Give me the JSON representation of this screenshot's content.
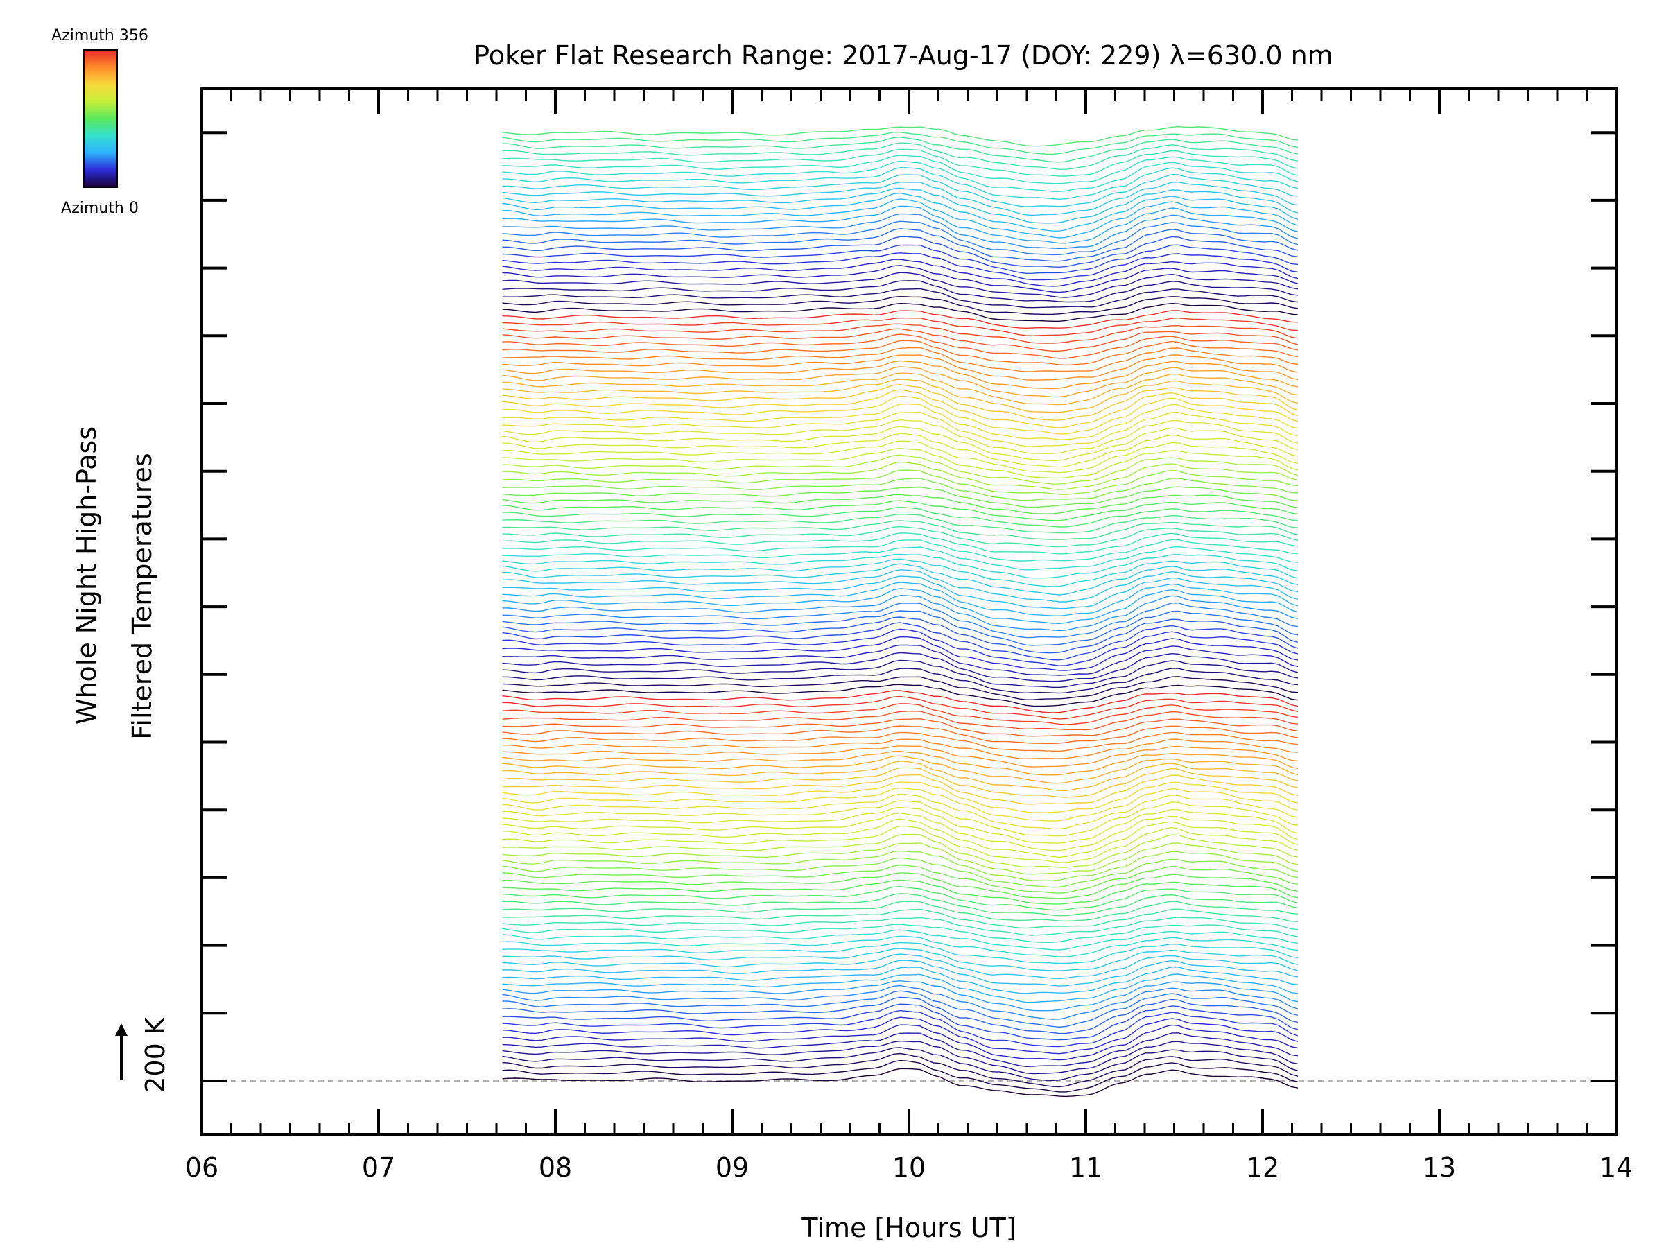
{
  "chart_data": {
    "type": "line",
    "title": "Poker Flat Research Range: 2017-Aug-17 (DOY: 229) λ=630.0 nm",
    "xlabel": "Time [Hours UT]",
    "ylabel_line1": "Whole Night High-Pass",
    "ylabel_line2": "Filtered Temperatures",
    "xlim": [
      6,
      14
    ],
    "x_ticks": [
      "06",
      "07",
      "08",
      "09",
      "10",
      "11",
      "12",
      "13",
      "14"
    ],
    "scale_bar_label": "200 K",
    "colorbar": {
      "top_label": "Azimuth 356",
      "bottom_label": "Azimuth 0",
      "colormap": "rainbow",
      "colors": [
        "#1a0033",
        "#2b2bd6",
        "#2fb0ff",
        "#35e0d0",
        "#5be85b",
        "#c8ef3a",
        "#f7d83a",
        "#ff8a2a",
        "#e82a2a"
      ]
    },
    "series_count": 140,
    "time_range": [
      7.7,
      12.2
    ],
    "base_profile": {
      "x": [
        7.7,
        7.9,
        8.0,
        8.3,
        8.6,
        9.0,
        9.3,
        9.6,
        9.8,
        9.95,
        10.05,
        10.15,
        10.3,
        10.5,
        10.7,
        10.85,
        11.0,
        11.2,
        11.35,
        11.5,
        11.6,
        11.75,
        11.9,
        12.05,
        12.2
      ],
      "y": [
        5,
        0,
        3,
        2,
        2,
        0,
        1,
        4,
        10,
        22,
        20,
        10,
        -6,
        -20,
        -28,
        -30,
        -24,
        -6,
        12,
        20,
        14,
        12,
        6,
        2,
        -14
      ]
    },
    "dashed_baseline": true
  }
}
